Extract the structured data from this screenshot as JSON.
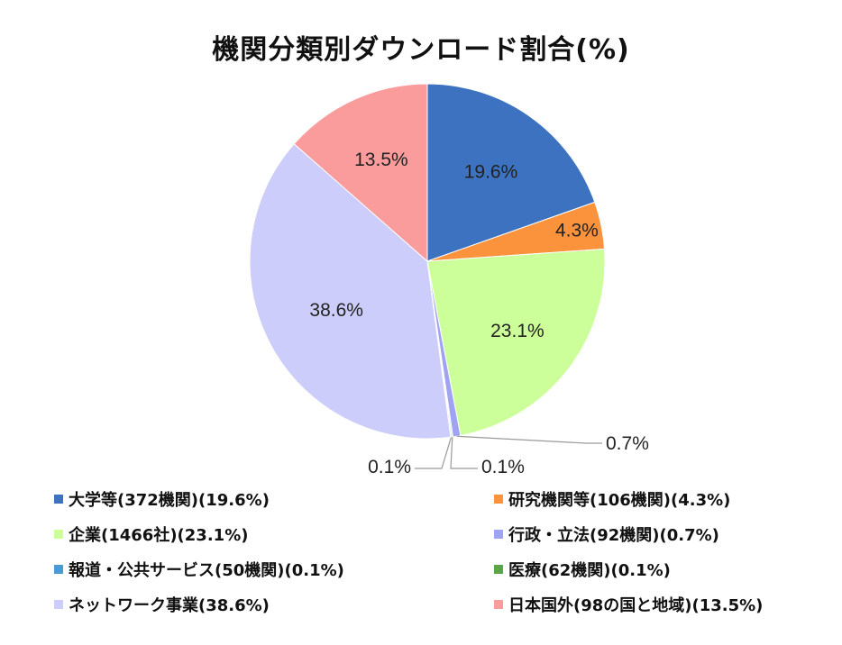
{
  "chart_data": {
    "type": "pie",
    "title": "機関分類別ダウンロード割合(%)",
    "slices": [
      {
        "label": "大学等(372機関)(19.6%)",
        "value": 19.6,
        "data_label": "19.6%",
        "color": "#3d72c0",
        "label_color": "#ffffff"
      },
      {
        "label": "研究機関等(106機関)(4.3%)",
        "value": 4.3,
        "data_label": "4.3%",
        "color": "#fb923c",
        "label_color": "#222222"
      },
      {
        "label": "企業(1466社)(23.1%)",
        "value": 23.1,
        "data_label": "23.1%",
        "color": "#ccff99",
        "label_color": "#222222"
      },
      {
        "label": "行政・立法(92機関)(0.7%)",
        "value": 0.7,
        "data_label": "0.7%",
        "color": "#a0a2f2",
        "label_color": "#222222"
      },
      {
        "label": "報道・公共サービス(50機関)(0.1%)",
        "value": 0.1,
        "data_label": "0.1%",
        "color": "#4a9bd6",
        "label_color": "#222222"
      },
      {
        "label": "医療(62機関)(0.1%)",
        "value": 0.1,
        "data_label": "0.1%",
        "color": "#5aa545",
        "label_color": "#222222"
      },
      {
        "label": "ネットワーク事業(38.6%)",
        "value": 38.6,
        "data_label": "38.6%",
        "color": "#cccdfa",
        "label_color": "#222222"
      },
      {
        "label": "日本国外(98の国と地域)(13.5%)",
        "value": 13.5,
        "data_label": "13.5%",
        "color": "#fb9c9c",
        "label_color": "#222222"
      }
    ],
    "legend_position": "bottom"
  }
}
